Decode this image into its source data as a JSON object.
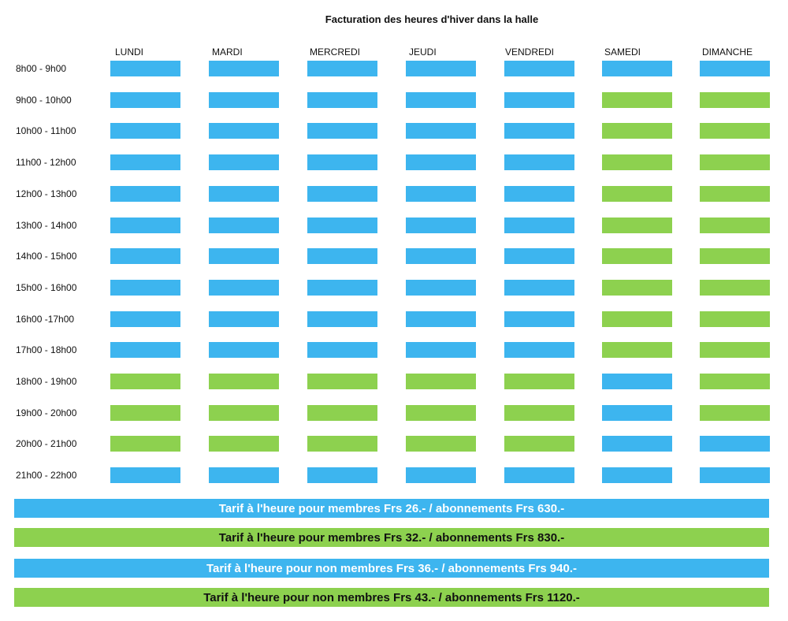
{
  "title": "Facturation des heures d'hiver dans la halle",
  "colors": {
    "blue": "#3db5ef",
    "green": "#8dd14f",
    "blue_text": "#ffffff",
    "green_text": "#111111"
  },
  "days": [
    "LUNDI",
    "MARDI",
    "MERCREDI",
    "JEUDI",
    "VENDREDI",
    "SAMEDI",
    "DIMANCHE"
  ],
  "schedule": [
    {
      "time": "8h00 - 9h00",
      "cells": [
        "blue",
        "blue",
        "blue",
        "blue",
        "blue",
        "blue",
        "blue"
      ]
    },
    {
      "time": "9h00 - 10h00",
      "cells": [
        "blue",
        "blue",
        "blue",
        "blue",
        "blue",
        "green",
        "green"
      ]
    },
    {
      "time": "10h00 - 11h00",
      "cells": [
        "blue",
        "blue",
        "blue",
        "blue",
        "blue",
        "green",
        "green"
      ]
    },
    {
      "time": "11h00 - 12h00",
      "cells": [
        "blue",
        "blue",
        "blue",
        "blue",
        "blue",
        "green",
        "green"
      ]
    },
    {
      "time": "12h00 - 13h00",
      "cells": [
        "blue",
        "blue",
        "blue",
        "blue",
        "blue",
        "green",
        "green"
      ]
    },
    {
      "time": "13h00 - 14h00",
      "cells": [
        "blue",
        "blue",
        "blue",
        "blue",
        "blue",
        "green",
        "green"
      ]
    },
    {
      "time": "14h00 - 15h00",
      "cells": [
        "blue",
        "blue",
        "blue",
        "blue",
        "blue",
        "green",
        "green"
      ]
    },
    {
      "time": "15h00 - 16h00",
      "cells": [
        "blue",
        "blue",
        "blue",
        "blue",
        "blue",
        "green",
        "green"
      ]
    },
    {
      "time": "16h00 -17h00",
      "cells": [
        "blue",
        "blue",
        "blue",
        "blue",
        "blue",
        "green",
        "green"
      ]
    },
    {
      "time": "17h00 - 18h00",
      "cells": [
        "blue",
        "blue",
        "blue",
        "blue",
        "blue",
        "green",
        "green"
      ]
    },
    {
      "time": "18h00 - 19h00",
      "cells": [
        "green",
        "green",
        "green",
        "green",
        "green",
        "blue",
        "green"
      ]
    },
    {
      "time": "19h00 - 20h00",
      "cells": [
        "green",
        "green",
        "green",
        "green",
        "green",
        "blue",
        "green"
      ]
    },
    {
      "time": "20h00 - 21h00",
      "cells": [
        "green",
        "green",
        "green",
        "green",
        "green",
        "blue",
        "blue"
      ]
    },
    {
      "time": "21h00 - 22h00",
      "cells": [
        "blue",
        "blue",
        "blue",
        "blue",
        "blue",
        "blue",
        "blue"
      ]
    }
  ],
  "rates": [
    {
      "text": "Tarif à l'heure pour membres Frs 26.- / abonnements Frs 630.-",
      "color": "blue"
    },
    {
      "text": "Tarif à l'heure pour membres Frs 32.- / abonnements Frs 830.-",
      "color": "green"
    },
    {
      "text": "Tarif à l'heure pour non membres Frs 36.- / abonnements Frs 940.-",
      "color": "blue"
    },
    {
      "text": "Tarif à l'heure pour non membres Frs 43.- / abonnements Frs 1120.-",
      "color": "green"
    }
  ]
}
